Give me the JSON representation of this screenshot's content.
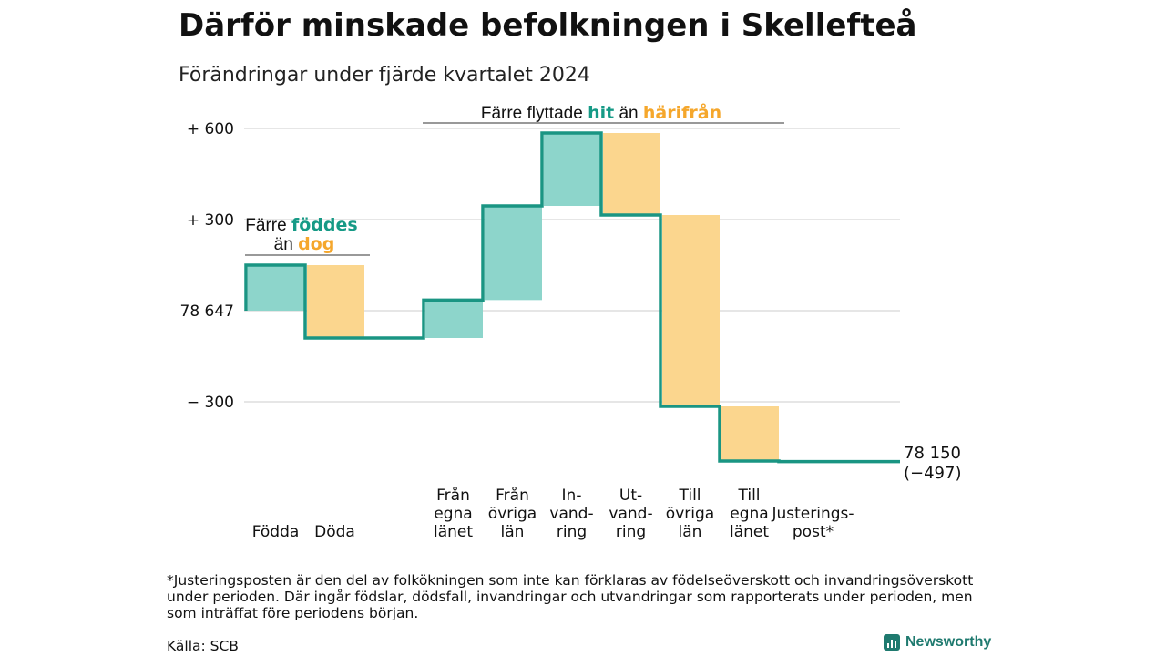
{
  "title": "Därför minskade befolkningen i Skellefteå",
  "subtitle": "Förändringar under fjärde kvartalet 2024",
  "colors": {
    "positive": "#8dd5cb",
    "negative": "#fbd68e",
    "line": "#1a9583",
    "teal_text": "#169a86",
    "orange_text": "#f5a72c",
    "grid": "#dddddd"
  },
  "annotations": {
    "births_deaths": {
      "line1_prefix": "Färre ",
      "line1_highlight": "föddes",
      "line2_prefix": "än ",
      "line2_highlight": "dog"
    },
    "migration": {
      "prefix": "Färre flyttade ",
      "highlight1": "hit",
      "middle": " än ",
      "highlight2": "härifrån"
    }
  },
  "end_label": {
    "value": "78 150",
    "change": "(−497)"
  },
  "chart_data": {
    "type": "waterfall",
    "start_value": 78647,
    "end_value": 78150,
    "total_change": -497,
    "y_ticks": [
      {
        "value": 600,
        "label": "+ 600"
      },
      {
        "value": 300,
        "label": "+ 300"
      },
      {
        "value": 0,
        "label": "78 647"
      },
      {
        "value": -300,
        "label": "− 300"
      }
    ],
    "ylim": [
      -520,
      650
    ],
    "steps": [
      {
        "label": [
          "Födda"
        ],
        "change": 150,
        "kind": "positive"
      },
      {
        "label": [
          "Döda"
        ],
        "change": -240,
        "kind": "negative"
      },
      {
        "label": [
          ""
        ],
        "change": 0,
        "kind": "gap"
      },
      {
        "label": [
          "Från",
          "egna",
          "länet"
        ],
        "change": 125,
        "kind": "positive"
      },
      {
        "label": [
          "Från",
          "övriga",
          "län"
        ],
        "change": 310,
        "kind": "positive"
      },
      {
        "label": [
          "In-",
          "vand-",
          "ring"
        ],
        "change": 240,
        "kind": "positive"
      },
      {
        "label": [
          "Ut-",
          "vand-",
          "ring"
        ],
        "change": -270,
        "kind": "negative"
      },
      {
        "label": [
          "Till",
          "övriga",
          "län"
        ],
        "change": -630,
        "kind": "negative"
      },
      {
        "label": [
          "Till",
          "egna",
          "länet"
        ],
        "change": -180,
        "kind": "negative"
      },
      {
        "label": [
          "Justerings-",
          "post*"
        ],
        "change": -2,
        "kind": "adjustment"
      }
    ]
  },
  "footnote": "*Justeringsposten är den del av folkökningen som inte kan förklaras av födelseöverskott och invandringsöverskott under perioden. Där ingår födslar, dödsfall, invandringar och utvandringar som rapporterats under perioden, men som inträffat före periodens början.",
  "source": "Källa: SCB",
  "logo_text": "Newsworthy"
}
